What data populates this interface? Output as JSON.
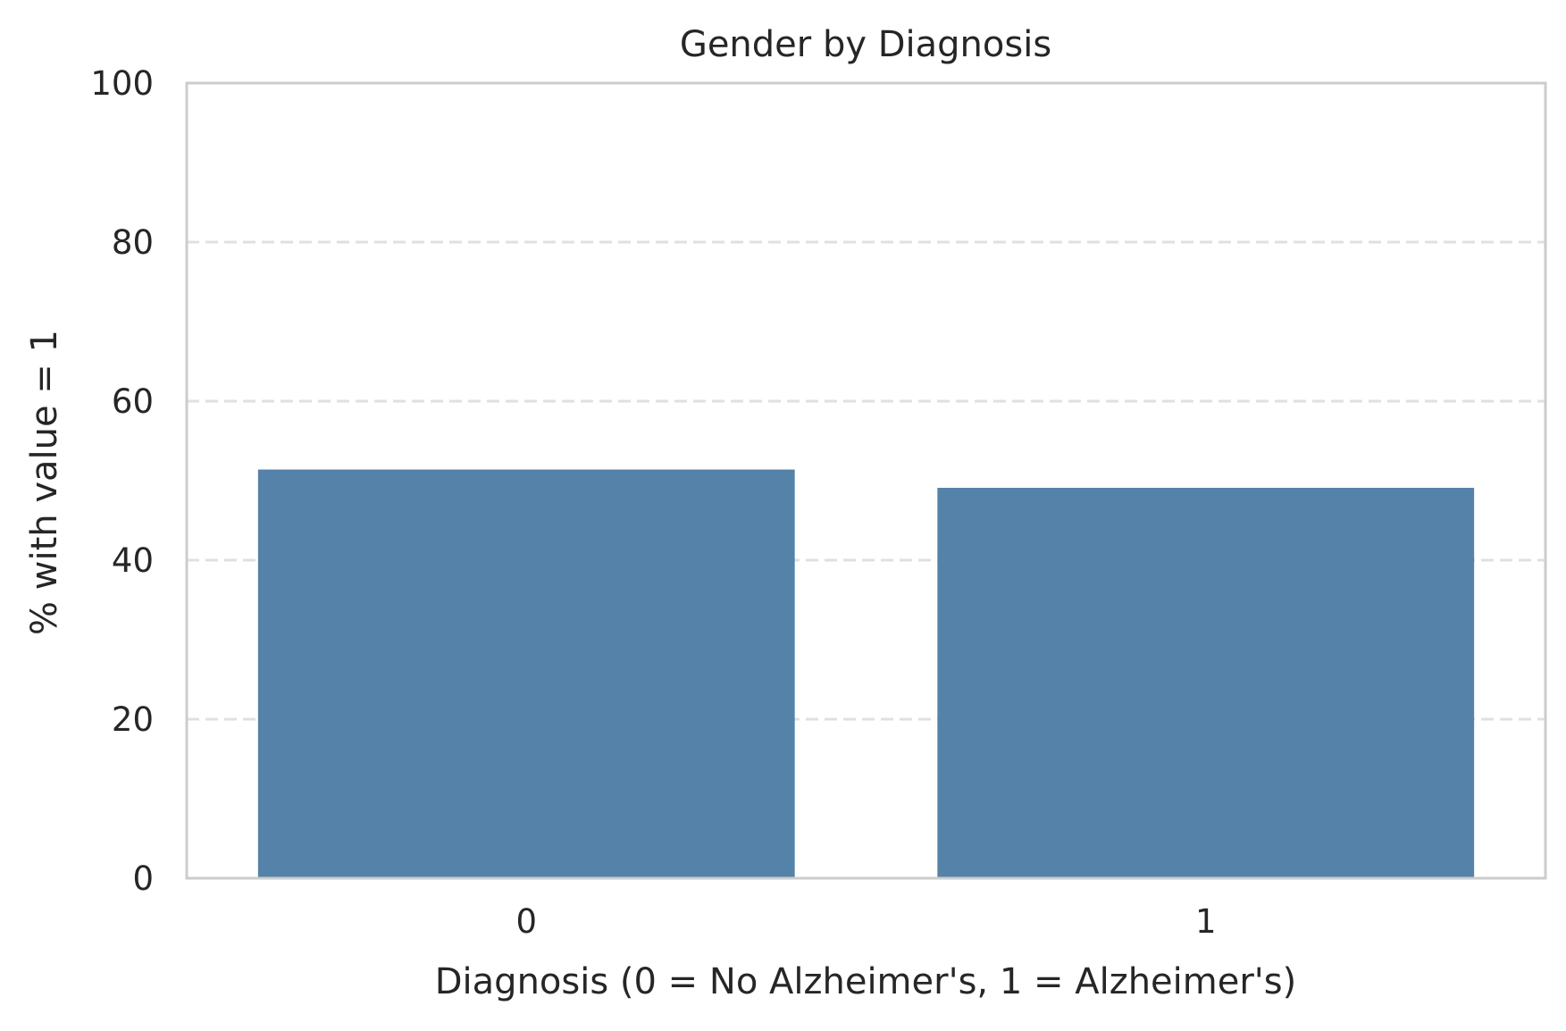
{
  "chart_data": {
    "type": "bar",
    "title": "Gender by Diagnosis",
    "xlabel": "Diagnosis (0 = No Alzheimer's, 1 = Alzheimer's)",
    "ylabel": "% with value = 1",
    "categories": [
      "0",
      "1"
    ],
    "values": [
      51.4,
      49.1
    ],
    "ylim": [
      0,
      100
    ],
    "yticks": [
      0,
      20,
      40,
      60,
      80,
      100
    ],
    "grid": "y-dashed",
    "legend": "none",
    "colors": {
      "bar": "#5482a8",
      "grid": "#e0e0e0",
      "frame": "#cccccc",
      "text": "#262626"
    }
  }
}
